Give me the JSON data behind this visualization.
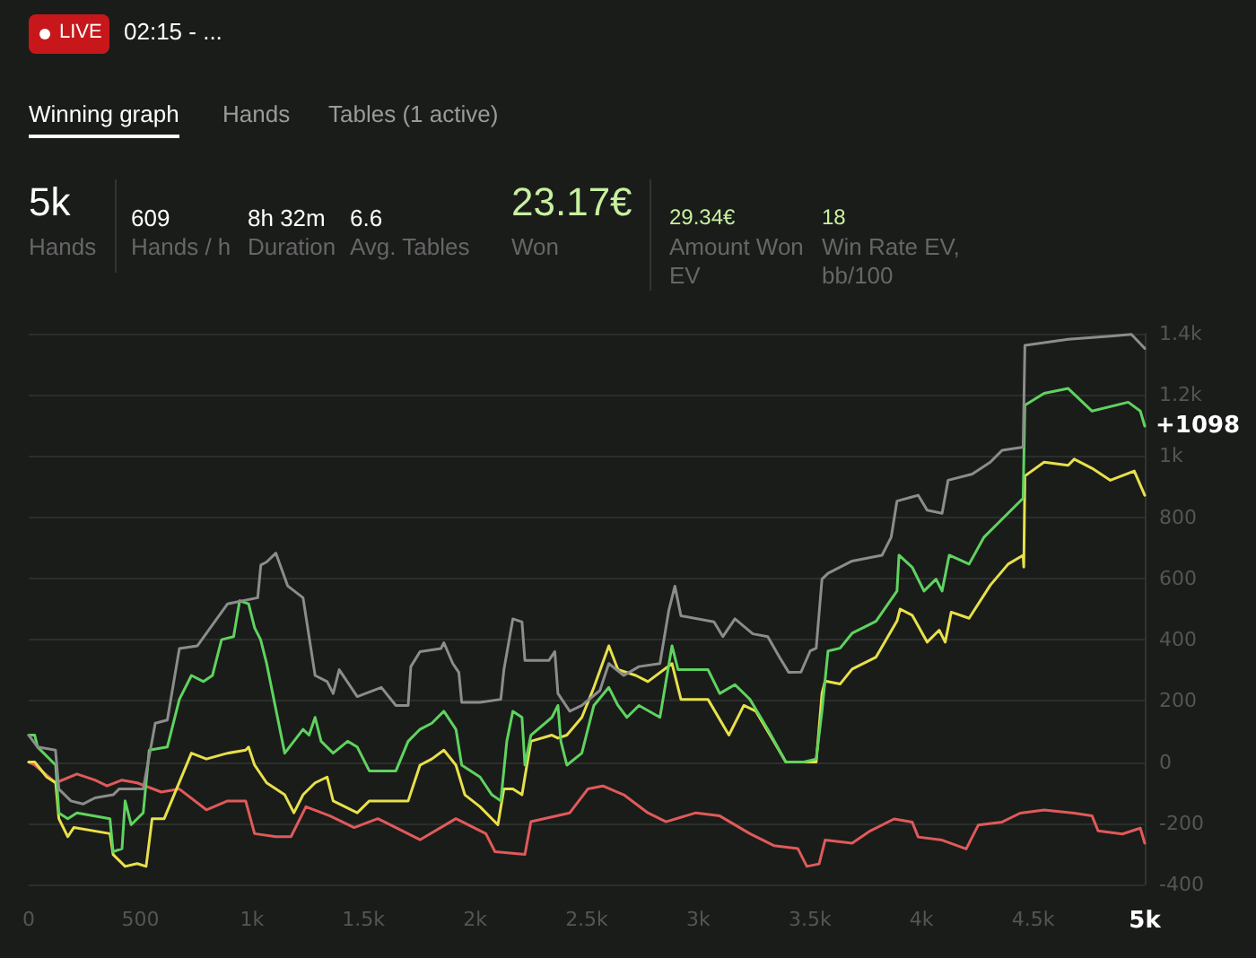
{
  "chart_data": {
    "type": "line",
    "grid": "y",
    "marker": "none",
    "line_style": "solid",
    "annotations": [
      "LIVE",
      "02:15 - ...",
      "Winning graph",
      "Hands",
      "Tables (1 active)",
      "5k",
      "Hands",
      "609",
      "Hands / h",
      "8h 32m",
      "Duration",
      "6.6",
      "Avg. Tables",
      "23.17€",
      "Won",
      "29.34€",
      "Amount Won EV",
      "18",
      "Win Rate EV, bb/100",
      {
        "text": "+1098",
        "x": 5000,
        "y": 1098
      }
    ],
    "xlim": [
      0,
      5000
    ],
    "xticks": [
      0,
      500,
      {
        "value": 1000,
        "label": "1k"
      },
      {
        "value": 1500,
        "label": "1.5k"
      },
      {
        "value": 2000,
        "label": "2k"
      },
      {
        "value": 2500,
        "label": "2.5k"
      },
      {
        "value": 3000,
        "label": "3k"
      },
      {
        "value": 3500,
        "label": "3.5k"
      },
      {
        "value": 4000,
        "label": "4k"
      },
      {
        "value": 4500,
        "label": "4.5k"
      },
      {
        "value": 5000,
        "label": "5k"
      }
    ],
    "ylim": [
      -400,
      1400
    ],
    "yticks": [
      -400,
      -200,
      0,
      200,
      400,
      600,
      800,
      {
        "value": 1000,
        "label": "1k"
      },
      {
        "value": 1200,
        "label": "1.2k"
      },
      {
        "value": 1400,
        "label": "1.4k"
      }
    ],
    "series": [
      {
        "color": "#8c8c8c",
        "x": [
          0,
          40,
          120,
          135,
          189,
          243,
          297,
          378,
          405,
          459,
          486,
          513,
          567,
          621,
          675,
          756,
          891,
          1026,
          1040,
          1066,
          1107,
          1160,
          1229,
          1283,
          1337,
          1364,
          1391,
          1472,
          1580,
          1645,
          1700,
          1712,
          1753,
          1847,
          1860,
          1900,
          1927,
          1940,
          2022,
          2115,
          2129,
          2169,
          2210,
          2223,
          2330,
          2357,
          2371,
          2424,
          2478,
          2559,
          2599,
          2666,
          2734,
          2828,
          2868,
          2895,
          2922,
          3070,
          3110,
          3164,
          3244,
          3311,
          3365,
          3405,
          3460,
          3501,
          3528,
          3554,
          3581,
          3689,
          3823,
          3864,
          3890,
          3985,
          4025,
          4092,
          4119,
          4227,
          4308,
          4361,
          4455,
          4463,
          4657,
          4846,
          4940,
          5000
        ],
        "values": [
          88,
          49,
          39,
          -88,
          -127,
          -137,
          -117,
          -107,
          -88,
          -88,
          -88,
          -88,
          127,
          137,
          371,
          380,
          517,
          537,
          644,
          654,
          683,
          576,
          537,
          283,
          263,
          224,
          302,
          214,
          244,
          185,
          185,
          312,
          361,
          371,
          390,
          322,
          293,
          195,
          195,
          205,
          302,
          468,
          458,
          332,
          332,
          361,
          224,
          166,
          185,
          234,
          322,
          283,
          312,
          322,
          497,
          575,
          478,
          458,
          410,
          468,
          419,
          410,
          341,
          293,
          294,
          363,
          372,
          598,
          617,
          657,
          676,
          735,
          853,
          872,
          823,
          813,
          921,
          941,
          980,
          1019,
          1029,
          1362,
          1382,
          1392,
          1398,
          1352
        ]
      },
      {
        "color": "#5fd35f",
        "x": [
          0,
          27,
          40,
          121,
          135,
          175,
          216,
          364,
          378,
          418,
          432,
          459,
          513,
          540,
          621,
          675,
          729,
          783,
          823,
          864,
          918,
          945,
          985,
          1012,
          1039,
          1066,
          1093,
          1147,
          1188,
          1229,
          1256,
          1283,
          1310,
          1364,
          1429,
          1472,
          1526,
          1580,
          1645,
          1700,
          1753,
          1806,
          1860,
          1914,
          1940,
          2022,
          2075,
          2115,
          2142,
          2169,
          2210,
          2223,
          2250,
          2344,
          2371,
          2384,
          2411,
          2478,
          2532,
          2599,
          2640,
          2680,
          2734,
          2828,
          2882,
          2909,
          3043,
          3096,
          3164,
          3231,
          3311,
          3392,
          3473,
          3528,
          3554,
          3581,
          3635,
          3689,
          3796,
          3890,
          3899,
          3958,
          4011,
          4065,
          4092,
          4124,
          4213,
          4280,
          4361,
          4455,
          4463,
          4549,
          4657,
          4764,
          4926,
          4980,
          5000
        ],
        "values": [
          88,
          88,
          49,
          -10,
          -166,
          -185,
          -166,
          -185,
          -293,
          -283,
          -127,
          -205,
          -166,
          39,
          49,
          205,
          283,
          263,
          283,
          400,
          410,
          527,
          517,
          439,
          400,
          322,
          224,
          29,
          68,
          107,
          88,
          146,
          68,
          29,
          68,
          49,
          -29,
          -29,
          -29,
          68,
          107,
          127,
          166,
          107,
          -10,
          -49,
          -107,
          -127,
          68,
          166,
          146,
          -10,
          88,
          146,
          185,
          68,
          -10,
          29,
          185,
          244,
          185,
          146,
          185,
          146,
          380,
          302,
          302,
          224,
          253,
          205,
          107,
          0,
          0,
          10,
          167,
          363,
          372,
          421,
          460,
          559,
          676,
          637,
          559,
          598,
          559,
          676,
          647,
          735,
          794,
          862,
          1166,
          1205,
          1221,
          1147,
          1176,
          1147,
          1098
        ]
      },
      {
        "color": "#e8e04a",
        "x": [
          0,
          27,
          81,
          121,
          135,
          175,
          202,
          364,
          378,
          432,
          486,
          526,
          553,
          607,
          729,
          796,
          891,
          972,
          985,
          1012,
          1066,
          1147,
          1188,
          1229,
          1283,
          1337,
          1364,
          1472,
          1526,
          1580,
          1645,
          1700,
          1753,
          1806,
          1860,
          1914,
          1954,
          2022,
          2102,
          2129,
          2169,
          2210,
          2223,
          2250,
          2344,
          2371,
          2411,
          2478,
          2532,
          2599,
          2640,
          2720,
          2774,
          2882,
          2922,
          3043,
          3137,
          3204,
          3258,
          3338,
          3392,
          3474,
          3528,
          3554,
          3568,
          3635,
          3689,
          3796,
          3890,
          3904,
          3958,
          4025,
          4079,
          4106,
          4133,
          4213,
          4308,
          4388,
          4455,
          4458,
          4463,
          4549,
          4657,
          4684,
          4764,
          4846,
          4953,
          5000
        ],
        "values": [
          0,
          0,
          -49,
          -68,
          -185,
          -244,
          -214,
          -234,
          -302,
          -341,
          -332,
          -341,
          -185,
          -185,
          29,
          10,
          29,
          39,
          49,
          -10,
          -68,
          -107,
          -166,
          -107,
          -68,
          -49,
          -127,
          -166,
          -127,
          -127,
          -127,
          -127,
          -10,
          10,
          39,
          -10,
          -107,
          -146,
          -205,
          -88,
          -88,
          -107,
          -49,
          68,
          88,
          78,
          88,
          146,
          244,
          380,
          302,
          283,
          263,
          322,
          205,
          205,
          88,
          185,
          166,
          68,
          0,
          0,
          0,
          225,
          265,
          255,
          304,
          343,
          461,
          500,
          480,
          392,
          431,
          392,
          490,
          470,
          578,
          647,
          676,
          637,
          935,
          980,
          970,
          990,
          960,
          921,
          951,
          872
        ]
      },
      {
        "color": "#e05a5a",
        "x": [
          0,
          27,
          121,
          216,
          297,
          351,
          418,
          486,
          594,
          675,
          796,
          891,
          972,
          1012,
          1107,
          1175,
          1242,
          1350,
          1458,
          1564,
          1645,
          1753,
          1914,
          2048,
          2089,
          2223,
          2250,
          2424,
          2505,
          2572,
          2666,
          2774,
          2855,
          2989,
          3096,
          3231,
          3338,
          3446,
          3486,
          3541,
          3568,
          3689,
          3770,
          3877,
          3958,
          3985,
          4092,
          4200,
          4254,
          4361,
          4442,
          4549,
          4684,
          4764,
          4791,
          4900,
          4980,
          5000
        ],
        "values": [
          0,
          -10,
          -68,
          -39,
          -59,
          -78,
          -59,
          -68,
          -98,
          -88,
          -156,
          -127,
          -127,
          -234,
          -244,
          -244,
          -146,
          -176,
          -214,
          -185,
          -214,
          -254,
          -185,
          -234,
          -293,
          -302,
          -195,
          -166,
          -88,
          -78,
          -107,
          -166,
          -195,
          -166,
          -176,
          -234,
          -273,
          -283,
          -341,
          -333,
          -255,
          -265,
          -225,
          -186,
          -196,
          -245,
          -255,
          -284,
          -206,
          -196,
          -167,
          -157,
          -167,
          -176,
          -225,
          -235,
          -216,
          -265
        ]
      }
    ]
  }
}
